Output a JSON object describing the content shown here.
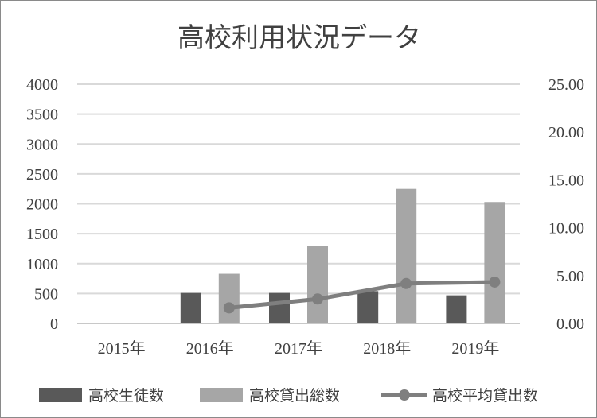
{
  "chart_data": {
    "type": "bar",
    "title": "高校利用状況データ",
    "categories": [
      "2015年",
      "2016年",
      "2017年",
      "2018年",
      "2019年"
    ],
    "series": [
      {
        "name": "高校生徒数",
        "type": "bar",
        "axis": "left",
        "color": "#595959",
        "values": [
          0,
          510,
          510,
          540,
          470
        ]
      },
      {
        "name": "高校貸出総数",
        "type": "bar",
        "axis": "left",
        "color": "#a6a6a6",
        "values": [
          0,
          830,
          1300,
          2250,
          2030
        ]
      },
      {
        "name": "高校平均貸出数",
        "type": "line",
        "axis": "right",
        "color": "#7f7f7f",
        "values": [
          null,
          1.63,
          2.55,
          4.17,
          4.32
        ]
      }
    ],
    "y_left": {
      "min": 0,
      "max": 4000,
      "ticks": [
        "4000",
        "3500",
        "3000",
        "2500",
        "2000",
        "1500",
        "1000",
        "500",
        "0"
      ]
    },
    "y_right": {
      "min": 0,
      "max": 25,
      "ticks": [
        "25.00",
        "20.00",
        "15.00",
        "10.00",
        "5.00",
        "0.00"
      ]
    },
    "grid": true,
    "legend_position": "bottom"
  }
}
